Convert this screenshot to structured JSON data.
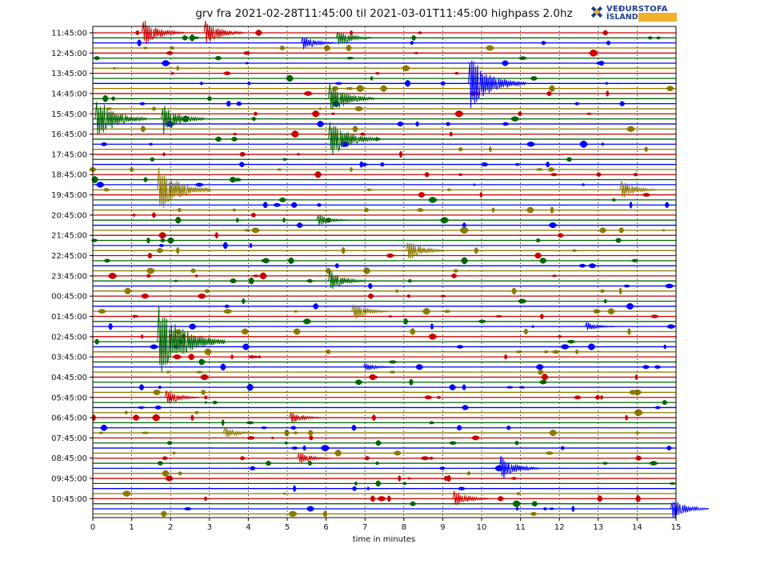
{
  "chart_data": {
    "type": "line",
    "title": "grv fra 2021-02-28T11:45:00 til 2021-03-01T11:45:00 highpass 2.0hz",
    "xlabel": "time in minutes",
    "ylabel": "",
    "xlim": [
      0,
      15
    ],
    "x_ticks": [
      "0",
      "1",
      "2",
      "3",
      "4",
      "5",
      "6",
      "7",
      "8",
      "9",
      "10",
      "11",
      "12",
      "13",
      "14",
      "15"
    ],
    "y_tick_labels": [
      "11:45:00",
      "12:45:00",
      "13:45:00",
      "14:45:00",
      "15:45:00",
      "16:45:00",
      "17:45:00",
      "18:45:00",
      "19:45:00",
      "20:45:00",
      "21:45:00",
      "22:45:00",
      "23:45:00",
      "00:45:00",
      "01:45:00",
      "02:45:00",
      "03:45:00",
      "04:45:00",
      "05:45:00",
      "06:45:00",
      "07:45:00",
      "08:45:00",
      "09:45:00",
      "10:45:00"
    ],
    "traces_count": 96,
    "trace_minutes": 15,
    "trace_colors": [
      "#cc0000",
      "#006600",
      "#0000ff",
      "#8c7a00"
    ],
    "vertical_grid": true,
    "events": [
      {
        "trace": 0,
        "minute": 1.3,
        "amp": 18
      },
      {
        "trace": 0,
        "minute": 2.9,
        "amp": 16
      },
      {
        "trace": 1,
        "minute": 6.3,
        "amp": 12
      },
      {
        "trace": 2,
        "minute": 5.4,
        "amp": 10
      },
      {
        "trace": 10,
        "minute": 9.7,
        "amp": 34
      },
      {
        "trace": 13,
        "minute": 6.1,
        "amp": 22
      },
      {
        "trace": 17,
        "minute": 0.1,
        "amp": 28
      },
      {
        "trace": 17,
        "minute": 1.8,
        "amp": 20
      },
      {
        "trace": 21,
        "minute": 6.1,
        "amp": 26
      },
      {
        "trace": 31,
        "minute": 1.7,
        "amp": 30
      },
      {
        "trace": 31,
        "minute": 13.6,
        "amp": 12
      },
      {
        "trace": 37,
        "minute": 5.8,
        "amp": 8
      },
      {
        "trace": 43,
        "minute": 8.1,
        "amp": 14
      },
      {
        "trace": 49,
        "minute": 6.1,
        "amp": 14
      },
      {
        "trace": 55,
        "minute": 6.7,
        "amp": 12
      },
      {
        "trace": 58,
        "minute": 12.7,
        "amp": 6
      },
      {
        "trace": 61,
        "minute": 1.7,
        "amp": 45
      },
      {
        "trace": 66,
        "minute": 7.0,
        "amp": 6
      },
      {
        "trace": 72,
        "minute": 1.9,
        "amp": 10
      },
      {
        "trace": 76,
        "minute": 5.1,
        "amp": 8
      },
      {
        "trace": 79,
        "minute": 3.4,
        "amp": 8
      },
      {
        "trace": 84,
        "minute": 5.3,
        "amp": 9
      },
      {
        "trace": 86,
        "minute": 10.5,
        "amp": 16
      },
      {
        "trace": 92,
        "minute": 9.3,
        "amp": 12
      },
      {
        "trace": 94,
        "minute": 14.9,
        "amp": 14
      }
    ]
  }
}
